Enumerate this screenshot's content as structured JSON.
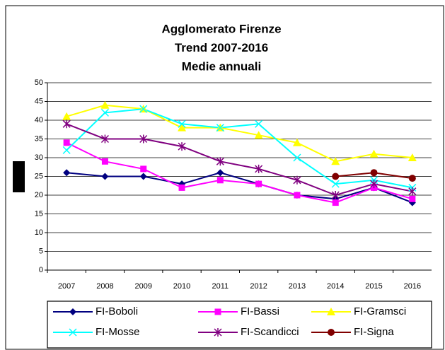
{
  "chart_data": {
    "type": "line",
    "title": [
      "Agglomerato Firenze",
      "Trend 2007-2016",
      "Medie annuali"
    ],
    "categories": [
      "2007",
      "2008",
      "2009",
      "2010",
      "2011",
      "2012",
      "2013",
      "2014",
      "2015",
      "2016"
    ],
    "series": [
      {
        "name": "FI-Boboli",
        "color": "#000080",
        "marker": "diamond",
        "values": [
          26,
          25,
          25,
          23,
          26,
          23,
          20,
          19,
          22,
          18
        ]
      },
      {
        "name": "FI-Bassi",
        "color": "#ff00ff",
        "marker": "square",
        "values": [
          34,
          29,
          27,
          22,
          24,
          23,
          20,
          18,
          22,
          19
        ]
      },
      {
        "name": "FI-Gramsci",
        "color": "#ffff00",
        "marker": "triangle",
        "values": [
          41,
          44,
          43,
          38,
          38,
          36,
          34,
          29,
          31,
          30
        ]
      },
      {
        "name": "FI-Mosse",
        "color": "#00ffff",
        "marker": "cross",
        "values": [
          32,
          42,
          43,
          39,
          38,
          39,
          30,
          23,
          24,
          22
        ]
      },
      {
        "name": "FI-Scandicci",
        "color": "#800080",
        "marker": "star",
        "values": [
          39,
          35,
          35,
          33,
          29,
          27,
          24,
          20,
          23,
          21
        ]
      },
      {
        "name": "FI-Signa",
        "color": "#800000",
        "marker": "circle",
        "values": [
          null,
          null,
          null,
          null,
          null,
          null,
          null,
          25,
          26,
          24.5
        ]
      }
    ],
    "ylim": [
      0,
      50
    ],
    "yticks": [
      0,
      5,
      10,
      15,
      20,
      25,
      30,
      35,
      40,
      45,
      50
    ],
    "grid": true
  }
}
